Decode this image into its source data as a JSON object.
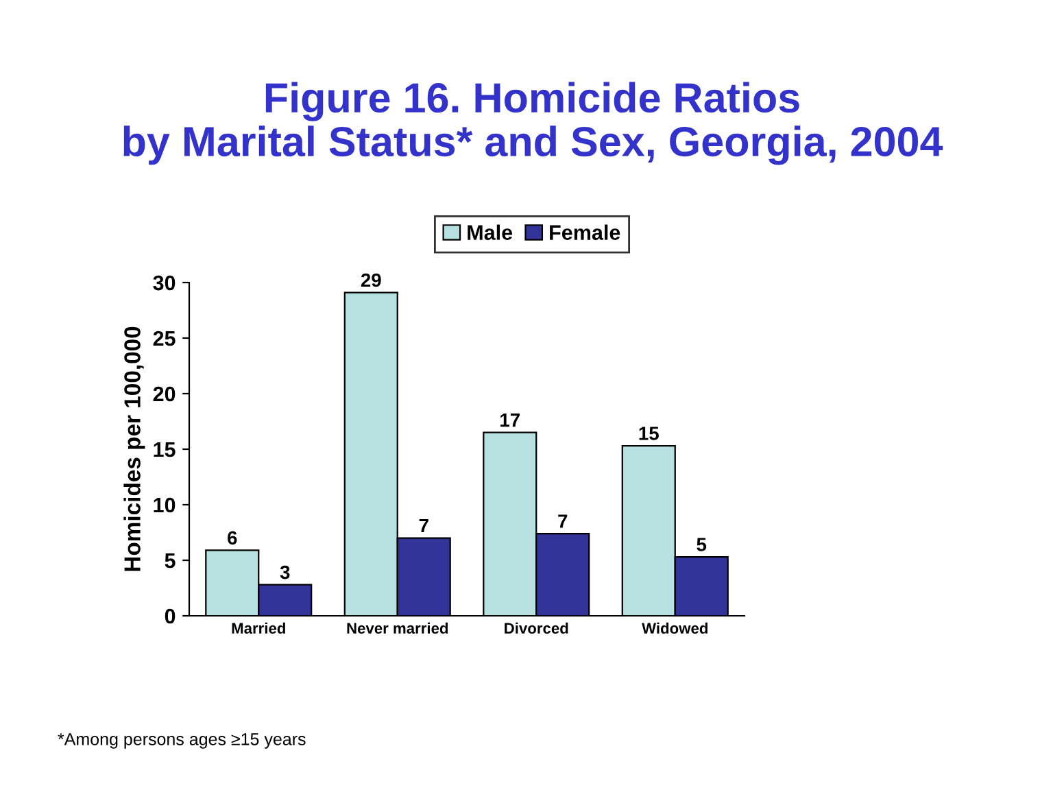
{
  "chart_data": {
    "type": "bar",
    "title": "Figure 16. Homicide Ratios\nby Marital Status* and Sex, Georgia, 2004",
    "ylabel": "Homicides per 100,000",
    "categories": [
      "Married",
      "Never married",
      "Divorced",
      "Widowed"
    ],
    "series": [
      {
        "name": "Male",
        "color": "#b7e0e0",
        "values": [
          5.9,
          29.1,
          16.5,
          15.3
        ],
        "value_labels": [
          "6",
          "29",
          "17",
          "15"
        ]
      },
      {
        "name": "Female",
        "color": "#333399",
        "values": [
          2.8,
          7.0,
          7.4,
          5.3
        ],
        "value_labels": [
          "3",
          "7",
          "7",
          "5"
        ]
      }
    ],
    "ylim": [
      0,
      30
    ],
    "yticks": [
      0,
      5,
      10,
      15,
      20,
      25,
      30
    ],
    "grid": false,
    "legend": "top",
    "annotations": [
      "*Among persons ages ≥15 years"
    ]
  }
}
